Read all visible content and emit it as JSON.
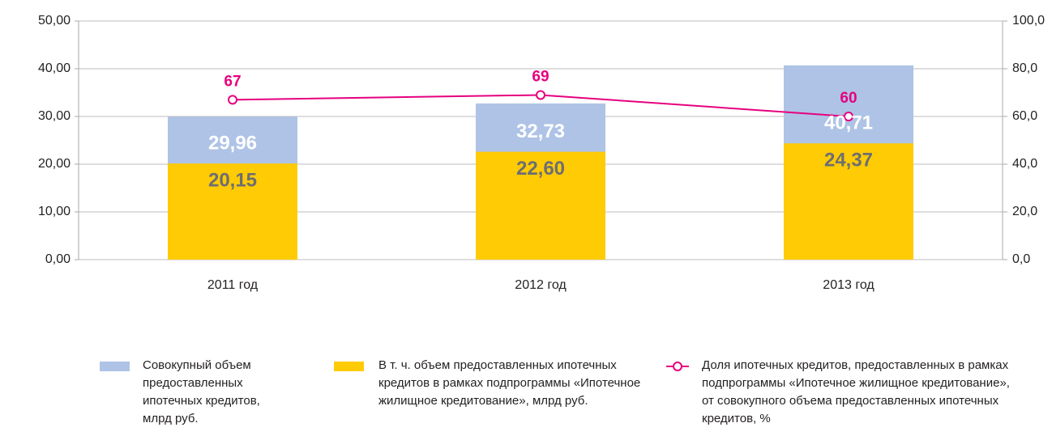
{
  "chart_data": {
    "type": "bar",
    "categories": [
      "2011 год",
      "2012 год",
      "2013 год"
    ],
    "series": [
      {
        "name": "Совокупный объем предоставленных ипотечных кредитов, млрд руб.",
        "color": "#aec3e6",
        "values": [
          29.96,
          32.73,
          40.71
        ],
        "value_labels": [
          "29,96",
          "32,73",
          "40,71"
        ],
        "label_color": "#ffffff"
      },
      {
        "name": "В т. ч. объем предоставленных ипотечных кредитов в рамках подпрограммы «Ипотечное жилищное кредитование», млрд руб.",
        "color": "#ffcb05",
        "values": [
          20.15,
          22.6,
          24.37
        ],
        "value_labels": [
          "20,15",
          "22,60",
          "24,37"
        ],
        "label_color": "#6d6e71"
      },
      {
        "name": "Доля ипотечных кредитов, предоставленных в рамках подпрограммы «Ипотечное жилищное кредитование», от совокупного объема предоставленных ипотечных кредитов, %",
        "color": "#e6007e",
        "type": "line",
        "axis": "y2",
        "values": [
          67,
          69,
          60
        ]
      }
    ],
    "ylim": [
      0,
      50
    ],
    "yticks": [
      {
        "value": 0,
        "label": "0,00"
      },
      {
        "value": 10,
        "label": "10,00"
      },
      {
        "value": 20,
        "label": "20,00"
      },
      {
        "value": 30,
        "label": "30,00"
      },
      {
        "value": 40,
        "label": "40,00"
      },
      {
        "value": 50,
        "label": "50,00"
      }
    ],
    "y2lim": [
      0,
      100
    ],
    "y2ticks": [
      {
        "value": 0,
        "label": "0,0"
      },
      {
        "value": 20,
        "label": "20,0"
      },
      {
        "value": 40,
        "label": "40,0"
      },
      {
        "value": 60,
        "label": "60,0"
      },
      {
        "value": 80,
        "label": "80,0"
      },
      {
        "value": 100,
        "label": "100,0"
      }
    ],
    "grid": true
  }
}
